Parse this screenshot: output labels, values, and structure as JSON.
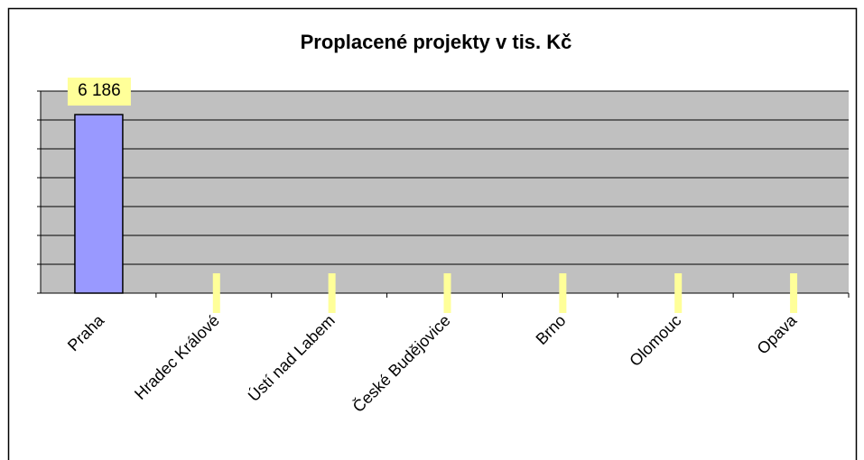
{
  "chart_data": {
    "type": "bar",
    "title": "Proplacené projekty v tis. Kč",
    "categories": [
      "Praha",
      "Hradec Králové",
      "Ústí nad Labem",
      "České Budějovice",
      "Brno",
      "Olomouc",
      "Opava"
    ],
    "values": [
      6186,
      0,
      0,
      0,
      0,
      0,
      0
    ],
    "value_labels": [
      "6 186",
      null,
      null,
      null,
      null,
      null,
      null
    ],
    "color": "#9999ff",
    "ylim": [
      0,
      7000
    ],
    "yticks": [
      0,
      1000,
      2000,
      3000,
      4000,
      5000,
      6000,
      7000
    ],
    "grid": true
  }
}
